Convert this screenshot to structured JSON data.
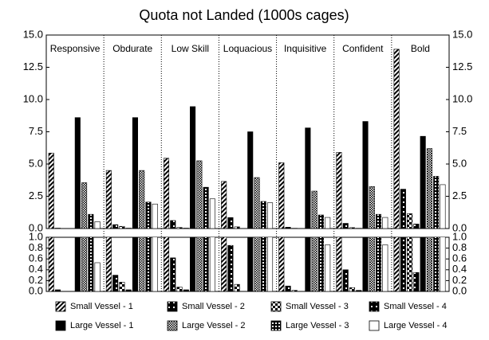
{
  "chart_data": {
    "type": "bar",
    "title": "Quota not Landed (1000s cages)",
    "categories": [
      "Responsive",
      "Obdurate",
      "Low Skill",
      "Loquacious",
      "Inquisitive",
      "Confident",
      "Bold"
    ],
    "series": [
      {
        "name": "Small Vessel - 1",
        "pattern": "hatch",
        "values": [
          5.85,
          4.5,
          5.45,
          3.65,
          5.1,
          5.9,
          13.9
        ]
      },
      {
        "name": "Small Vessel - 2",
        "pattern": "dots",
        "values": [
          0.03,
          0.3,
          0.62,
          0.85,
          0.1,
          0.4,
          3.05
        ]
      },
      {
        "name": "Small Vessel - 3",
        "pattern": "quarters",
        "values": [
          0.0,
          0.17,
          0.08,
          0.13,
          0.02,
          0.07,
          1.15
        ]
      },
      {
        "name": "Small Vessel - 4",
        "pattern": "blackbox",
        "values": [
          0.0,
          0.03,
          0.03,
          0.0,
          0.0,
          0.02,
          0.35
        ]
      },
      {
        "name": "Large Vessel - 1",
        "pattern": "solid",
        "values": [
          8.6,
          8.6,
          9.45,
          7.5,
          7.8,
          8.3,
          7.15
        ]
      },
      {
        "name": "Large Vessel - 2",
        "pattern": "checker",
        "values": [
          3.55,
          4.5,
          5.25,
          3.95,
          2.9,
          3.25,
          6.2
        ]
      },
      {
        "name": "Large Vessel - 3",
        "pattern": "grid",
        "values": [
          1.1,
          2.05,
          3.2,
          2.1,
          1.05,
          1.1,
          4.05
        ]
      },
      {
        "name": "Large Vessel - 4",
        "pattern": "white",
        "values": [
          0.53,
          1.9,
          2.3,
          2.0,
          0.86,
          0.86,
          3.4
        ]
      }
    ],
    "ylim": [
      0,
      15
    ],
    "yticks": [
      {
        "value": 0,
        "label": "0.0"
      },
      2.5,
      {
        "value": 5,
        "label": "5.0"
      },
      7.5,
      {
        "value": 10,
        "label": "10.0"
      },
      12.5,
      {
        "value": 15,
        "label": "15.0"
      }
    ],
    "ylim_lower": [
      0,
      1
    ],
    "yticks_lower": [
      {
        "value": 0,
        "label": "0.0"
      },
      0.2,
      0.4,
      0.6,
      0.8,
      {
        "value": 1,
        "label": "1.0"
      }
    ]
  }
}
